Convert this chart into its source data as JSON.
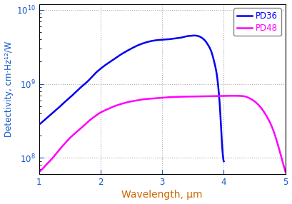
{
  "xlabel": "Wavelength, μm",
  "ylabel": "Detectivity, cm·Hz¹²/W",
  "xlim": [
    1,
    5
  ],
  "ylim": [
    60000000.0,
    12000000000.0
  ],
  "bg_color": "#ffffff",
  "grid_color": "#aaaaaa",
  "line_pd36_color": "#0000ee",
  "line_pd48_color": "#ff00ff",
  "legend_labels": [
    "PD36",
    "PD48"
  ],
  "xlabel_color": "#cc6600",
  "ylabel_color": "#1155cc",
  "tick_label_color": "#1155cc",
  "legend_text_color": "#cc6600",
  "xticks": [
    1,
    2,
    3,
    4,
    5
  ],
  "pd36_x": [
    1.0,
    1.1,
    1.2,
    1.3,
    1.4,
    1.5,
    1.6,
    1.7,
    1.8,
    1.9,
    2.0,
    2.1,
    2.2,
    2.3,
    2.4,
    2.5,
    2.6,
    2.7,
    2.8,
    2.9,
    3.0,
    3.05,
    3.1,
    3.15,
    3.2,
    3.25,
    3.3,
    3.35,
    3.4,
    3.45,
    3.5,
    3.55,
    3.6,
    3.65,
    3.7,
    3.75,
    3.8,
    3.85,
    3.9,
    3.92,
    3.94,
    3.96,
    3.98,
    4.0
  ],
  "pd36_y": [
    280000000.0,
    330000000.0,
    390000000.0,
    460000000.0,
    550000000.0,
    650000000.0,
    780000000.0,
    930000000.0,
    1100000000.0,
    1350000000.0,
    1600000000.0,
    1850000000.0,
    2100000000.0,
    2400000000.0,
    2700000000.0,
    3000000000.0,
    3300000000.0,
    3550000000.0,
    3750000000.0,
    3880000000.0,
    3950000000.0,
    3980000000.0,
    4000000000.0,
    4050000000.0,
    4100000000.0,
    4150000000.0,
    4200000000.0,
    4300000000.0,
    4400000000.0,
    4450000000.0,
    4500000000.0,
    4480000000.0,
    4380000000.0,
    4150000000.0,
    3800000000.0,
    3300000000.0,
    2700000000.0,
    1900000000.0,
    1100000000.0,
    750000000.0,
    450000000.0,
    220000000.0,
    120000000.0,
    90000000.0
  ],
  "pd48_x": [
    1.0,
    1.05,
    1.1,
    1.2,
    1.3,
    1.4,
    1.5,
    1.6,
    1.7,
    1.8,
    1.9,
    2.0,
    2.1,
    2.2,
    2.3,
    2.4,
    2.5,
    2.6,
    2.7,
    2.8,
    2.9,
    3.0,
    3.1,
    3.2,
    3.3,
    3.4,
    3.5,
    3.6,
    3.7,
    3.8,
    3.9,
    4.0,
    4.1,
    4.2,
    4.3,
    4.35,
    4.4,
    4.5,
    4.6,
    4.7,
    4.8,
    4.9,
    5.0
  ],
  "pd48_y": [
    65000000.0,
    70000000.0,
    78000000.0,
    95000000.0,
    120000000.0,
    150000000.0,
    185000000.0,
    220000000.0,
    260000000.0,
    310000000.0,
    360000000.0,
    410000000.0,
    450000000.0,
    490000000.0,
    525000000.0,
    555000000.0,
    580000000.0,
    600000000.0,
    620000000.0,
    630000000.0,
    640000000.0,
    650000000.0,
    660000000.0,
    665000000.0,
    670000000.0,
    672000000.0,
    675000000.0,
    678000000.0,
    680000000.0,
    682000000.0,
    685000000.0,
    688000000.0,
    690000000.0,
    690000000.0,
    685000000.0,
    675000000.0,
    650000000.0,
    580000000.0,
    480000000.0,
    360000000.0,
    240000000.0,
    130000000.0,
    65000000.0
  ]
}
